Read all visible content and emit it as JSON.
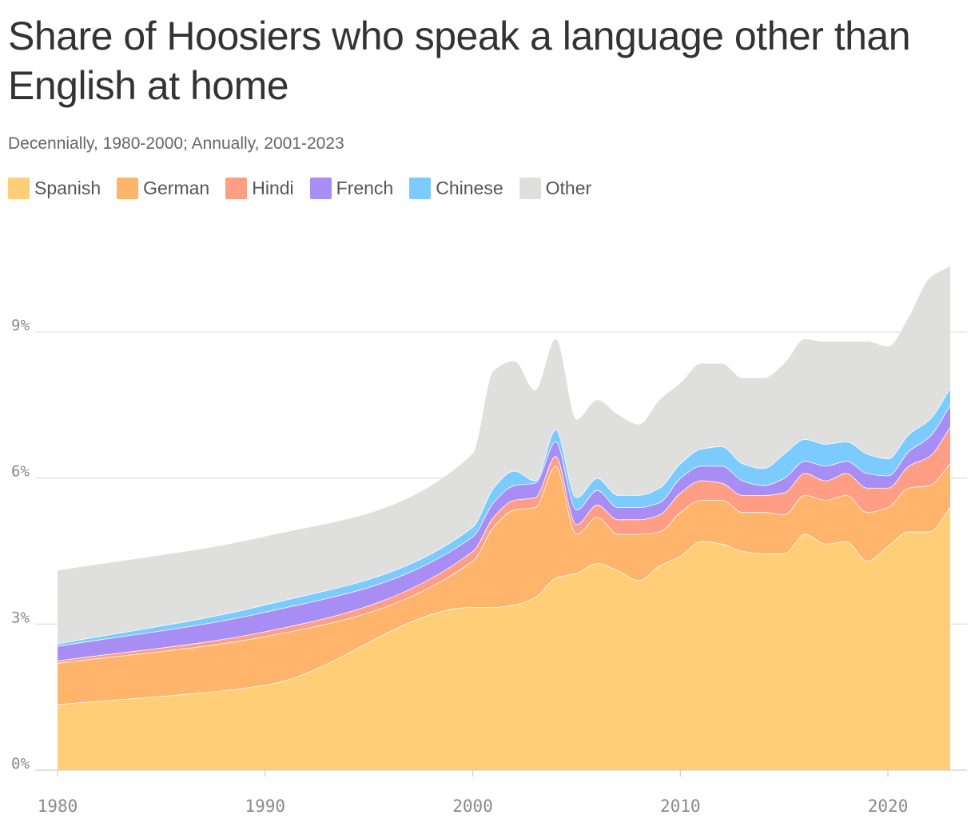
{
  "title": "Share of Hoosiers who speak a language other than English at home",
  "subtitle": "Decennially, 1980-2000; Annually, 2001-2023",
  "chart_data": {
    "type": "area",
    "stacked": true,
    "title": "Share of Hoosiers who speak a language other than English at home",
    "subtitle": "Decennially, 1980-2000; Annually, 2001-2023",
    "xlabel": "",
    "ylabel": "",
    "x": [
      1980,
      1990,
      2000,
      2001,
      2002,
      2003,
      2004,
      2005,
      2006,
      2007,
      2008,
      2009,
      2010,
      2011,
      2012,
      2013,
      2014,
      2015,
      2016,
      2017,
      2018,
      2019,
      2020,
      2021,
      2022,
      2023
    ],
    "xlim": [
      1980,
      2023
    ],
    "ylim": [
      0,
      10.5
    ],
    "x_ticks": [
      1980,
      1990,
      2000,
      2010,
      2020
    ],
    "y_ticks": [
      0,
      3,
      6,
      9
    ],
    "y_tick_labels": [
      "0%",
      "3%",
      "6%",
      "9%"
    ],
    "grid": true,
    "legend_position": "top-left",
    "series": [
      {
        "name": "Spanish",
        "color": "#ffce77",
        "values": [
          1.35,
          1.75,
          3.35,
          3.35,
          3.4,
          3.55,
          3.95,
          4.05,
          4.25,
          4.1,
          3.9,
          4.2,
          4.4,
          4.7,
          4.65,
          4.5,
          4.45,
          4.45,
          4.85,
          4.65,
          4.7,
          4.3,
          4.6,
          4.9,
          4.9,
          5.4
        ]
      },
      {
        "name": "German",
        "color": "#ffb46b",
        "values": [
          0.85,
          1.0,
          0.95,
          1.65,
          1.95,
          1.85,
          2.3,
          0.8,
          0.95,
          0.75,
          0.95,
          0.7,
          0.9,
          0.85,
          0.9,
          0.8,
          0.85,
          0.8,
          0.8,
          0.9,
          0.95,
          1.0,
          0.8,
          0.9,
          0.95,
          0.9
        ]
      },
      {
        "name": "Hindi",
        "color": "#ff9d85",
        "values": [
          0.05,
          0.1,
          0.2,
          0.2,
          0.2,
          0.2,
          0.2,
          0.2,
          0.25,
          0.3,
          0.3,
          0.35,
          0.4,
          0.4,
          0.35,
          0.35,
          0.35,
          0.45,
          0.45,
          0.4,
          0.45,
          0.5,
          0.4,
          0.45,
          0.6,
          0.75
        ]
      },
      {
        "name": "French",
        "color": "#a88df5",
        "values": [
          0.3,
          0.4,
          0.3,
          0.3,
          0.3,
          0.3,
          0.3,
          0.3,
          0.3,
          0.25,
          0.25,
          0.25,
          0.3,
          0.3,
          0.35,
          0.3,
          0.2,
          0.3,
          0.25,
          0.3,
          0.25,
          0.3,
          0.25,
          0.3,
          0.4,
          0.45
        ]
      },
      {
        "name": "Chinese",
        "color": "#7ccbff",
        "values": [
          0.05,
          0.15,
          0.2,
          0.3,
          0.3,
          0.05,
          0.25,
          0.25,
          0.25,
          0.25,
          0.25,
          0.3,
          0.3,
          0.35,
          0.4,
          0.35,
          0.35,
          0.5,
          0.45,
          0.45,
          0.4,
          0.4,
          0.35,
          0.35,
          0.35,
          0.35
        ]
      },
      {
        "name": "Other",
        "color": "#dfdfde",
        "values": [
          1.5,
          1.4,
          1.5,
          2.4,
          2.25,
          1.85,
          1.85,
          1.6,
          1.6,
          1.65,
          1.45,
          1.8,
          1.65,
          1.75,
          1.7,
          1.75,
          1.85,
          1.85,
          2.05,
          2.1,
          2.05,
          2.3,
          2.3,
          2.4,
          2.9,
          2.5
        ]
      }
    ]
  }
}
